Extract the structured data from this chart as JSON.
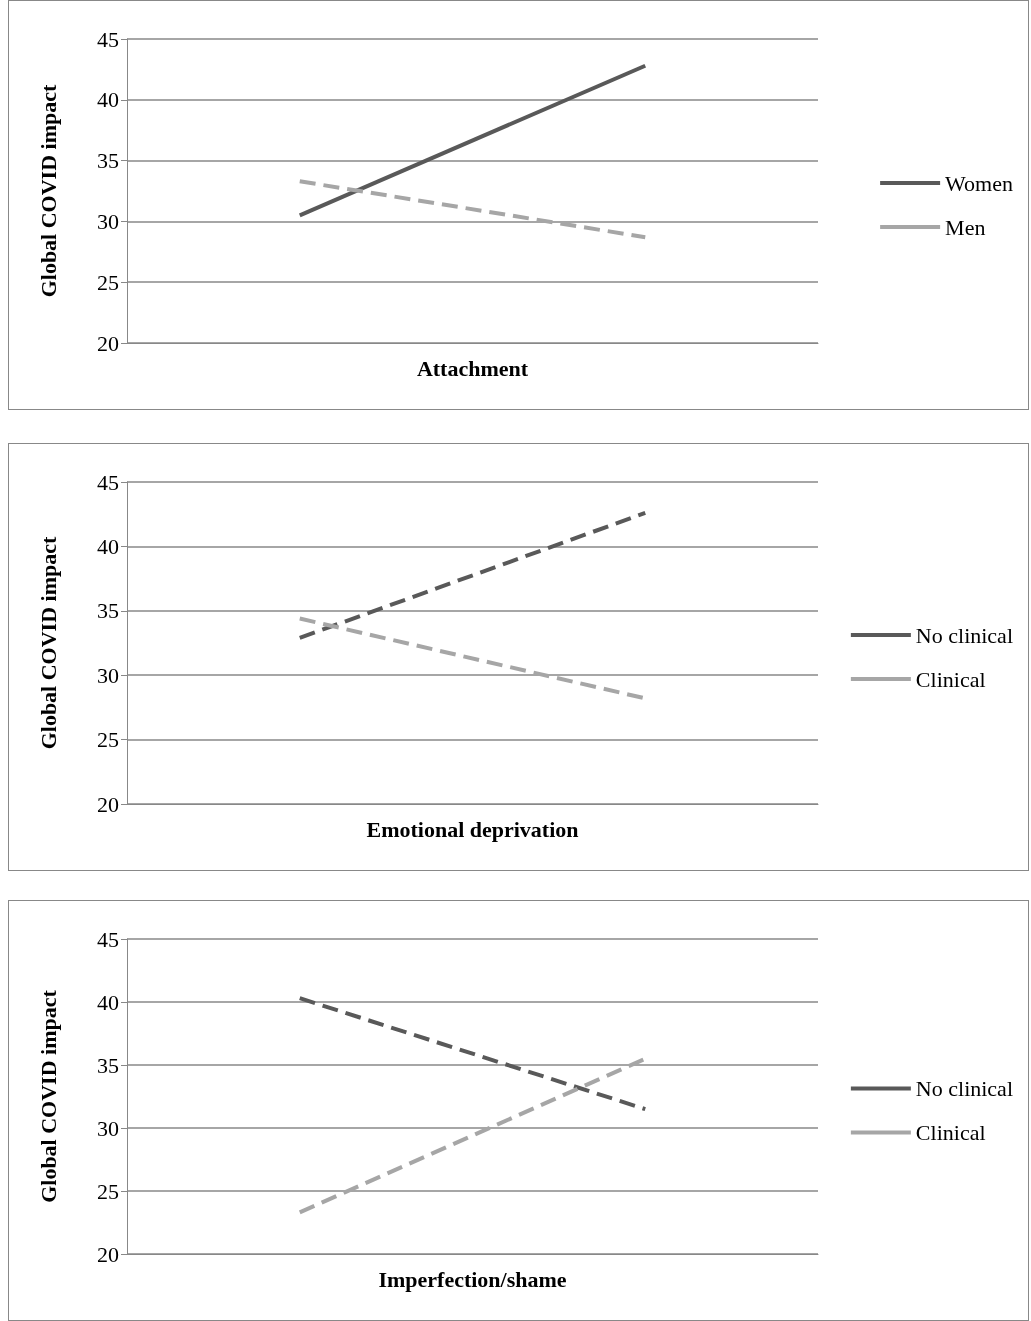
{
  "chart_data": [
    {
      "type": "line",
      "xlabel": "Attachment",
      "ylabel": "Global COVID impact",
      "categories": [
        null,
        null
      ],
      "ylim": [
        20,
        45
      ],
      "yticks": [
        20,
        25,
        30,
        35,
        40,
        45
      ],
      "grid": "y",
      "legend": "right",
      "marker": "none",
      "series": [
        {
          "name": "Women",
          "color": "#595959",
          "line_style": "solid",
          "values": [
            30.5,
            42.8
          ]
        },
        {
          "name": "Men",
          "color": "#a6a6a6",
          "line_style": "dashed",
          "values": [
            33.3,
            28.7
          ]
        }
      ]
    },
    {
      "type": "line",
      "xlabel": "Emotional deprivation",
      "ylabel": "Global COVID impact",
      "categories": [
        null,
        null
      ],
      "ylim": [
        20,
        45
      ],
      "yticks": [
        20,
        25,
        30,
        35,
        40,
        45
      ],
      "grid": "y",
      "legend": "right",
      "marker": "none",
      "series": [
        {
          "name": "No clinical",
          "color": "#595959",
          "line_style": "dashed",
          "values": [
            32.9,
            42.6
          ]
        },
        {
          "name": "Clinical",
          "color": "#a6a6a6",
          "line_style": "dashed",
          "values": [
            34.4,
            28.2
          ]
        }
      ]
    },
    {
      "type": "line",
      "xlabel": "Imperfection/shame",
      "ylabel": "Global COVID impact",
      "categories": [
        null,
        null
      ],
      "ylim": [
        20,
        45
      ],
      "yticks": [
        20,
        25,
        30,
        35,
        40,
        45
      ],
      "grid": "y",
      "legend": "right",
      "marker": "none",
      "series": [
        {
          "name": "No clinical",
          "color": "#595959",
          "line_style": "dashed",
          "values": [
            40.3,
            31.5
          ]
        },
        {
          "name": "Clinical",
          "color": "#a6a6a6",
          "line_style": "dashed",
          "values": [
            23.3,
            35.5
          ]
        }
      ]
    }
  ]
}
